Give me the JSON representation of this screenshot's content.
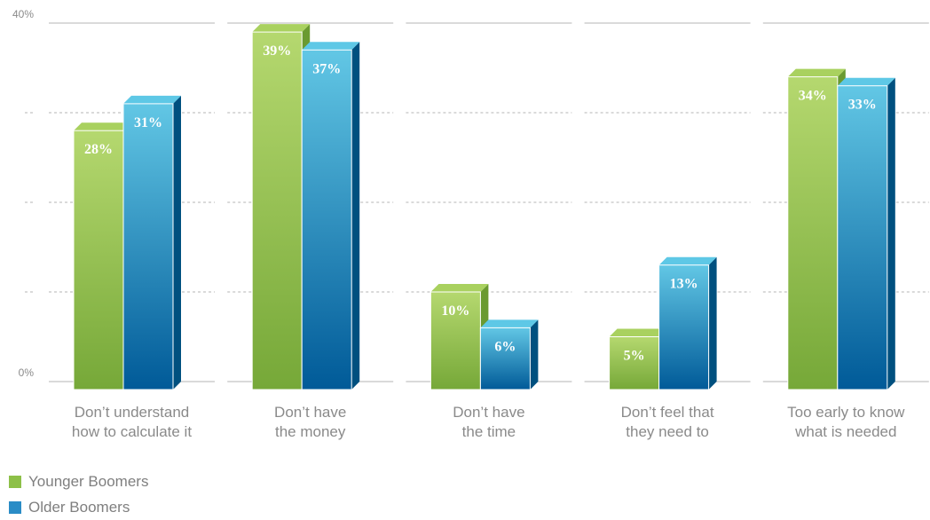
{
  "chart_data": {
    "type": "bar",
    "categories": [
      [
        "Don’t understand",
        "how to calculate it"
      ],
      [
        "Don’t have",
        "the money"
      ],
      [
        "Don’t have",
        "the time"
      ],
      [
        "Don’t feel that",
        "they need to"
      ],
      [
        "Too early to know",
        "what is needed"
      ]
    ],
    "series": [
      {
        "name": "Younger Boomers",
        "values": [
          28,
          39,
          10,
          5,
          34
        ],
        "labels": [
          "28%",
          "39%",
          "10%",
          "5%",
          "34%"
        ]
      },
      {
        "name": "Older Boomers",
        "values": [
          31,
          37,
          6,
          13,
          33
        ],
        "labels": [
          "31%",
          "37%",
          "6%",
          "13%",
          "33%"
        ]
      }
    ],
    "ylim": [
      0,
      40
    ],
    "yticks": [
      0,
      10,
      20,
      30,
      40
    ],
    "ytick_labels": [
      "0%",
      "",
      "",
      "",
      "40%"
    ],
    "grid": true,
    "legend_position": "bottom-left",
    "colors": {
      "series1_top": "#a6cd63",
      "series1_bottom": "#7aab3a",
      "series2_top": "#5ec6e4",
      "series2_bottom": "#005b9a",
      "grid": "#b5b5b5",
      "text": "#8a8a8a"
    }
  },
  "legend": {
    "items": [
      {
        "label": "Younger Boomers",
        "color": "#8dc048"
      },
      {
        "label": "Older Boomers",
        "color": "#2a8cc6"
      }
    ]
  }
}
